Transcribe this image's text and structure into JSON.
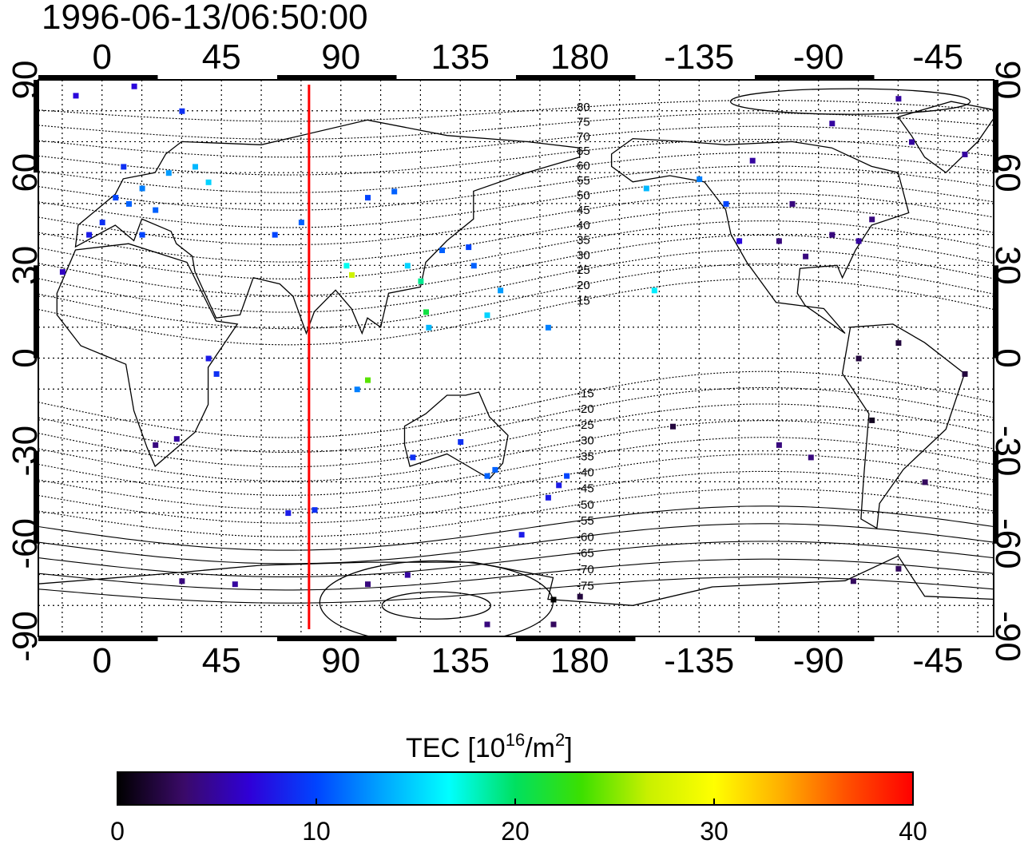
{
  "title": "1996-06-13/06:50:00",
  "colorbar": {
    "label_main": "TEC  [10",
    "label_sup1": "16",
    "label_mid": "/m",
    "label_sup2": "2",
    "label_end": "]",
    "min": 0,
    "max": 40,
    "ticks": [
      "0",
      "10",
      "20",
      "30",
      "40"
    ],
    "stops": [
      "#000000",
      "#3a0a68",
      "#2f00d8",
      "#0044ff",
      "#00a6ff",
      "#00ffff",
      "#00e060",
      "#3ce000",
      "#c8f000",
      "#ffff00",
      "#ffb000",
      "#ff5000",
      "#ff0000"
    ]
  },
  "axes": {
    "x_top_ticks": [
      "0",
      "45",
      "90",
      "135",
      "180",
      "-135",
      "-90",
      "-45"
    ],
    "x_bottom_ticks": [
      "0",
      "45",
      "90",
      "135",
      "180",
      "-135",
      "-90",
      "-45"
    ],
    "y_left_ticks": [
      "90",
      "60",
      "30",
      "0",
      "-30",
      "-60",
      "-90"
    ],
    "y_right_ticks": [
      "90",
      "60",
      "30",
      "0",
      "-30",
      "-60",
      "-90"
    ],
    "lon_range": [
      -24,
      336
    ],
    "lat_range": [
      -90,
      90
    ]
  },
  "meridian_marker": {
    "longitude": 78,
    "color": "#ff0000"
  },
  "contour_labels": {
    "north": [
      "80",
      "75",
      "70",
      "65",
      "60",
      "55",
      "50",
      "45",
      "40",
      "35",
      "30",
      "25",
      "20",
      "15"
    ],
    "south": [
      "-15",
      "-20",
      "-25",
      "-30",
      "-35",
      "-40",
      "-45",
      "-50",
      "-55",
      "-60",
      "-65",
      "-70",
      "-75"
    ]
  },
  "chart_data": {
    "type": "heatmap",
    "title": "1996-06-13/06:50:00",
    "xlabel": "",
    "ylabel": "",
    "colorbar_label": "TEC [10^16/m^2]",
    "value_range": [
      0,
      40
    ],
    "points": [
      {
        "lon": 5,
        "lat": 52,
        "tec": 10
      },
      {
        "lon": 10,
        "lat": 50,
        "tec": 11
      },
      {
        "lon": 15,
        "lat": 55,
        "tec": 12
      },
      {
        "lon": 20,
        "lat": 48,
        "tec": 11
      },
      {
        "lon": 25,
        "lat": 60,
        "tec": 13
      },
      {
        "lon": 8,
        "lat": 62,
        "tec": 9
      },
      {
        "lon": 35,
        "lat": 62,
        "tec": 14
      },
      {
        "lon": 40,
        "lat": 57,
        "tec": 15
      },
      {
        "lon": 0,
        "lat": 44,
        "tec": 9
      },
      {
        "lon": -5,
        "lat": 40,
        "tec": 8
      },
      {
        "lon": 15,
        "lat": 40,
        "tec": 10
      },
      {
        "lon": -15,
        "lat": 28,
        "tec": 6
      },
      {
        "lon": -10,
        "lat": 85,
        "tec": 7
      },
      {
        "lon": 12,
        "lat": 88,
        "tec": 7
      },
      {
        "lon": 30,
        "lat": 80,
        "tec": 9
      },
      {
        "lon": 65,
        "lat": 40,
        "tec": 10
      },
      {
        "lon": 75,
        "lat": 44,
        "tec": 11
      },
      {
        "lon": 100,
        "lat": 52,
        "tec": 10
      },
      {
        "lon": 110,
        "lat": 54,
        "tec": 11
      },
      {
        "lon": 92,
        "lat": 30,
        "tec": 17
      },
      {
        "lon": 115,
        "lat": 30,
        "tec": 15
      },
      {
        "lon": 120,
        "lat": 25,
        "tec": 19
      },
      {
        "lon": 122,
        "lat": 15,
        "tec": 21
      },
      {
        "lon": 123,
        "lat": 10,
        "tec": 14
      },
      {
        "lon": 94,
        "lat": 27,
        "tec": 27
      },
      {
        "lon": 100,
        "lat": -7,
        "tec": 24
      },
      {
        "lon": 96,
        "lat": -10,
        "tec": 12
      },
      {
        "lon": 128,
        "lat": 35,
        "tec": 11
      },
      {
        "lon": 138,
        "lat": 36,
        "tec": 10
      },
      {
        "lon": 140,
        "lat": 30,
        "tec": 11
      },
      {
        "lon": 145,
        "lat": 14,
        "tec": 15
      },
      {
        "lon": 150,
        "lat": 22,
        "tec": 13
      },
      {
        "lon": 168,
        "lat": 10,
        "tec": 12
      },
      {
        "lon": 117,
        "lat": -32,
        "tec": 9
      },
      {
        "lon": 135,
        "lat": -27,
        "tec": 9
      },
      {
        "lon": 148,
        "lat": -36,
        "tec": 11
      },
      {
        "lon": 145,
        "lat": -38,
        "tec": 11
      },
      {
        "lon": 172,
        "lat": -41,
        "tec": 8
      },
      {
        "lon": 175,
        "lat": -38,
        "tec": 10
      },
      {
        "lon": 168,
        "lat": -45,
        "tec": 8
      },
      {
        "lon": 158,
        "lat": -57,
        "tec": 8
      },
      {
        "lon": 70,
        "lat": -50,
        "tec": 8
      },
      {
        "lon": 80,
        "lat": -49,
        "tec": 9
      },
      {
        "lon": 40,
        "lat": 0,
        "tec": 8
      },
      {
        "lon": 43,
        "lat": -5,
        "tec": 9
      },
      {
        "lon": 28,
        "lat": -26,
        "tec": 5
      },
      {
        "lon": 20,
        "lat": -28,
        "tec": 4
      },
      {
        "lon": 30,
        "lat": -72,
        "tec": 4
      },
      {
        "lon": 50,
        "lat": -73,
        "tec": 5
      },
      {
        "lon": 100,
        "lat": -73,
        "tec": 4
      },
      {
        "lon": 115,
        "lat": -70,
        "tec": 5
      },
      {
        "lon": 170,
        "lat": -78,
        "tec": 0
      },
      {
        "lon": 180,
        "lat": -77,
        "tec": 2
      },
      {
        "lon": 145,
        "lat": -86,
        "tec": 4
      },
      {
        "lon": 170,
        "lat": -86,
        "tec": 3
      },
      {
        "lon": 205,
        "lat": 55,
        "tec": 14
      },
      {
        "lon": 208,
        "lat": 22,
        "tec": 16
      },
      {
        "lon": 225,
        "lat": 58,
        "tec": 12
      },
      {
        "lon": 235,
        "lat": 50,
        "tec": 10
      },
      {
        "lon": 240,
        "lat": 38,
        "tec": 7
      },
      {
        "lon": 255,
        "lat": 38,
        "tec": 4
      },
      {
        "lon": 265,
        "lat": 33,
        "tec": 4
      },
      {
        "lon": 275,
        "lat": 40,
        "tec": 4
      },
      {
        "lon": 285,
        "lat": 38,
        "tec": 5
      },
      {
        "lon": 290,
        "lat": 45,
        "tec": 4
      },
      {
        "lon": 260,
        "lat": 50,
        "tec": 4
      },
      {
        "lon": 245,
        "lat": 64,
        "tec": 5
      },
      {
        "lon": 275,
        "lat": 76,
        "tec": 5
      },
      {
        "lon": 300,
        "lat": 84,
        "tec": 5
      },
      {
        "lon": 305,
        "lat": 70,
        "tec": 5
      },
      {
        "lon": 325,
        "lat": 66,
        "tec": 5
      },
      {
        "lon": 285,
        "lat": 0,
        "tec": 2
      },
      {
        "lon": 300,
        "lat": 5,
        "tec": 2
      },
      {
        "lon": 325,
        "lat": -5,
        "tec": 2
      },
      {
        "lon": 290,
        "lat": -20,
        "tec": 1
      },
      {
        "lon": 310,
        "lat": -40,
        "tec": 3
      },
      {
        "lon": 283,
        "lat": -72,
        "tec": 3
      },
      {
        "lon": 300,
        "lat": -68,
        "tec": 3
      },
      {
        "lon": 215,
        "lat": -22,
        "tec": 2
      },
      {
        "lon": 255,
        "lat": -28,
        "tec": 4
      },
      {
        "lon": 267,
        "lat": -32,
        "tec": 4
      }
    ]
  }
}
